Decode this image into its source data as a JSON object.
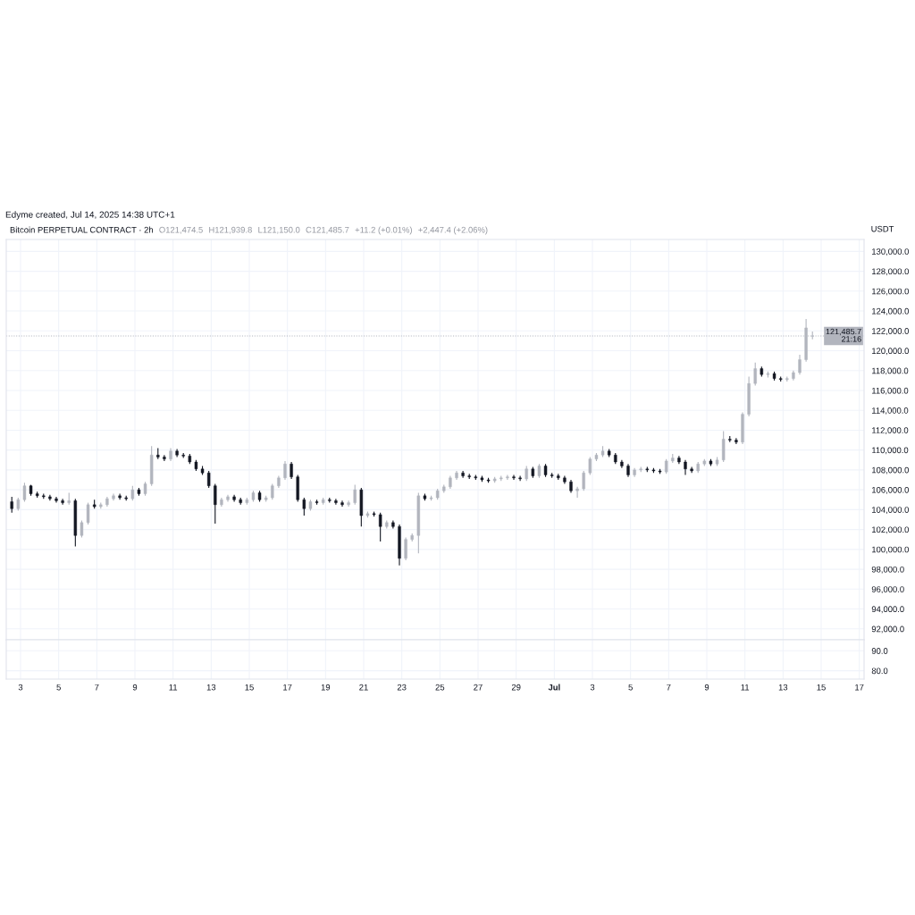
{
  "chart_data": [
    {
      "type": "candlestick",
      "title": "Edyme created, Jul 14, 2025 14:38 UTC+1",
      "subtitle": "Bitcoin PERPETUAL CONTRACT · 2h",
      "annotations": [
        "O121,474.5",
        "H121,939.8",
        "L121,150.0",
        "C121,485.7",
        "+11.2 (+0.01%)",
        "+2,447.4 (+2.06%)"
      ],
      "ylabel": "USDT",
      "x": [
        "2025-06-02T13:00",
        "2025-06-02T21:00",
        "2025-06-03T05:00",
        "2025-06-03T13:00",
        "2025-06-03T21:00",
        "2025-06-04T05:00",
        "2025-06-04T13:00",
        "2025-06-04T21:00",
        "2025-06-05T05:00",
        "2025-06-05T13:00",
        "2025-06-05T21:00",
        "2025-06-06T05:00",
        "2025-06-06T13:00",
        "2025-06-06T21:00",
        "2025-06-07T05:00",
        "2025-06-07T13:00",
        "2025-06-07T21:00",
        "2025-06-08T05:00",
        "2025-06-08T13:00",
        "2025-06-08T21:00",
        "2025-06-09T05:00",
        "2025-06-09T13:00",
        "2025-06-09T21:00",
        "2025-06-10T05:00",
        "2025-06-10T13:00",
        "2025-06-10T21:00",
        "2025-06-11T05:00",
        "2025-06-11T13:00",
        "2025-06-11T21:00",
        "2025-06-12T05:00",
        "2025-06-12T13:00",
        "2025-06-12T21:00",
        "2025-06-13T05:00",
        "2025-06-13T13:00",
        "2025-06-13T21:00",
        "2025-06-14T05:00",
        "2025-06-14T13:00",
        "2025-06-14T21:00",
        "2025-06-15T05:00",
        "2025-06-15T13:00",
        "2025-06-15T21:00",
        "2025-06-16T05:00",
        "2025-06-16T13:00",
        "2025-06-16T21:00",
        "2025-06-17T05:00",
        "2025-06-17T13:00",
        "2025-06-17T21:00",
        "2025-06-18T05:00",
        "2025-06-18T13:00",
        "2025-06-18T21:00",
        "2025-06-19T05:00",
        "2025-06-19T13:00",
        "2025-06-19T21:00",
        "2025-06-20T05:00",
        "2025-06-20T13:00",
        "2025-06-20T21:00",
        "2025-06-21T05:00",
        "2025-06-21T13:00",
        "2025-06-21T21:00",
        "2025-06-22T05:00",
        "2025-06-22T13:00",
        "2025-06-22T21:00",
        "2025-06-23T05:00",
        "2025-06-23T13:00",
        "2025-06-23T21:00",
        "2025-06-24T05:00",
        "2025-06-24T13:00",
        "2025-06-24T21:00",
        "2025-06-25T05:00",
        "2025-06-25T13:00",
        "2025-06-25T21:00",
        "2025-06-26T05:00",
        "2025-06-26T13:00",
        "2025-06-26T21:00",
        "2025-06-27T05:00",
        "2025-06-27T13:00",
        "2025-06-27T21:00",
        "2025-06-28T05:00",
        "2025-06-28T13:00",
        "2025-06-28T21:00",
        "2025-06-29T05:00",
        "2025-06-29T13:00",
        "2025-06-29T21:00",
        "2025-06-30T05:00",
        "2025-06-30T13:00",
        "2025-06-30T21:00",
        "2025-07-01T05:00",
        "2025-07-01T13:00",
        "2025-07-01T21:00",
        "2025-07-02T05:00",
        "2025-07-02T13:00",
        "2025-07-02T21:00",
        "2025-07-03T05:00",
        "2025-07-03T13:00",
        "2025-07-03T21:00",
        "2025-07-04T05:00",
        "2025-07-04T13:00",
        "2025-07-04T21:00",
        "2025-07-05T05:00",
        "2025-07-05T13:00",
        "2025-07-05T21:00",
        "2025-07-06T05:00",
        "2025-07-06T13:00",
        "2025-07-06T21:00",
        "2025-07-07T05:00",
        "2025-07-07T13:00",
        "2025-07-07T21:00",
        "2025-07-08T05:00",
        "2025-07-08T13:00",
        "2025-07-08T21:00",
        "2025-07-09T05:00",
        "2025-07-09T13:00",
        "2025-07-09T21:00",
        "2025-07-10T05:00",
        "2025-07-10T13:00",
        "2025-07-10T21:00",
        "2025-07-11T05:00",
        "2025-07-11T13:00",
        "2025-07-11T21:00",
        "2025-07-12T05:00",
        "2025-07-12T13:00",
        "2025-07-12T21:00",
        "2025-07-13T05:00",
        "2025-07-13T13:00",
        "2025-07-13T21:00",
        "2025-07-14T05:00",
        "2025-07-14T13:00"
      ],
      "ohlc": [
        [
          104800,
          105300,
          103700,
          104100
        ],
        [
          104100,
          105200,
          103900,
          105000
        ],
        [
          105000,
          106700,
          104800,
          106400
        ],
        [
          106400,
          106500,
          105400,
          105600
        ],
        [
          105600,
          105800,
          105200,
          105400
        ],
        [
          105400,
          105600,
          105100,
          105300
        ],
        [
          105300,
          105500,
          104900,
          105100
        ],
        [
          105100,
          105300,
          104700,
          104900
        ],
        [
          104900,
          105100,
          104500,
          104700
        ],
        [
          104700,
          105700,
          104500,
          104900
        ],
        [
          104900,
          105100,
          100300,
          101400
        ],
        [
          101400,
          102900,
          101200,
          102700
        ],
        [
          102700,
          104700,
          102500,
          104500
        ],
        [
          104500,
          105000,
          104100,
          104300
        ],
        [
          104300,
          104700,
          104100,
          104500
        ],
        [
          104500,
          105300,
          104300,
          105100
        ],
        [
          105100,
          105600,
          104900,
          105400
        ],
        [
          105400,
          105600,
          105000,
          105200
        ],
        [
          105200,
          105400,
          104900,
          105100
        ],
        [
          105100,
          106400,
          104900,
          106000
        ],
        [
          106000,
          106200,
          105400,
          105600
        ],
        [
          105600,
          106800,
          105400,
          106600
        ],
        [
          106600,
          110400,
          106400,
          109500
        ],
        [
          109500,
          110200,
          109100,
          109300
        ],
        [
          109300,
          109500,
          108900,
          109100
        ],
        [
          109100,
          110200,
          108900,
          109900
        ],
        [
          109900,
          110100,
          109300,
          109500
        ],
        [
          109500,
          109700,
          109200,
          109400
        ],
        [
          109400,
          109600,
          108600,
          108800
        ],
        [
          108800,
          109000,
          107900,
          108100
        ],
        [
          108100,
          108400,
          107500,
          107700
        ],
        [
          107700,
          107900,
          106200,
          106400
        ],
        [
          106400,
          106600,
          102600,
          104500
        ],
        [
          104500,
          105200,
          104300,
          105000
        ],
        [
          105000,
          105500,
          104800,
          105300
        ],
        [
          105300,
          105500,
          104800,
          105000
        ],
        [
          105000,
          105200,
          104500,
          104700
        ],
        [
          104700,
          105200,
          104500,
          105000
        ],
        [
          105000,
          105900,
          104800,
          105700
        ],
        [
          105700,
          105900,
          104800,
          105000
        ],
        [
          105000,
          105400,
          104800,
          105200
        ],
        [
          105200,
          106600,
          105000,
          106400
        ],
        [
          106400,
          107400,
          106200,
          107200
        ],
        [
          107200,
          108900,
          107000,
          108600
        ],
        [
          108600,
          108800,
          107100,
          107300
        ],
        [
          107300,
          107500,
          104800,
          105000
        ],
        [
          105000,
          105200,
          103400,
          104100
        ],
        [
          104100,
          105000,
          103900,
          104800
        ],
        [
          104800,
          105000,
          104500,
          104700
        ],
        [
          104700,
          105200,
          104500,
          105000
        ],
        [
          105000,
          105200,
          104700,
          104900
        ],
        [
          104900,
          105100,
          104500,
          104700
        ],
        [
          104700,
          104900,
          104300,
          104500
        ],
        [
          104500,
          104900,
          104300,
          104700
        ],
        [
          104700,
          106500,
          104500,
          106000
        ],
        [
          106000,
          106200,
          102300,
          103400
        ],
        [
          103400,
          103800,
          103200,
          103600
        ],
        [
          103600,
          103800,
          103300,
          103500
        ],
        [
          103500,
          103700,
          100800,
          102300
        ],
        [
          102300,
          102900,
          102100,
          102700
        ],
        [
          102700,
          102900,
          102100,
          102300
        ],
        [
          102300,
          102500,
          98400,
          99100
        ],
        [
          99100,
          101200,
          98900,
          101000
        ],
        [
          101000,
          101600,
          100800,
          101400
        ],
        [
          101400,
          105700,
          99600,
          105400
        ],
        [
          105400,
          105600,
          104900,
          105100
        ],
        [
          105100,
          105400,
          104900,
          105200
        ],
        [
          105200,
          106100,
          105000,
          105900
        ],
        [
          105900,
          106500,
          105700,
          106300
        ],
        [
          106300,
          107400,
          106100,
          107200
        ],
        [
          107200,
          107900,
          107000,
          107700
        ],
        [
          107700,
          107900,
          107200,
          107400
        ],
        [
          107400,
          107600,
          107100,
          107300
        ],
        [
          107300,
          107500,
          107000,
          107200
        ],
        [
          107200,
          107400,
          106800,
          107000
        ],
        [
          107000,
          107200,
          106700,
          106900
        ],
        [
          106900,
          107300,
          106700,
          107100
        ],
        [
          107100,
          107400,
          106900,
          107200
        ],
        [
          107200,
          107500,
          107000,
          107300
        ],
        [
          107300,
          107500,
          107000,
          107200
        ],
        [
          107200,
          107400,
          106900,
          107100
        ],
        [
          107100,
          108400,
          106900,
          108100
        ],
        [
          108100,
          108300,
          107200,
          107400
        ],
        [
          107400,
          108600,
          107200,
          108400
        ],
        [
          108400,
          108600,
          107300,
          107500
        ],
        [
          107500,
          107700,
          107200,
          107400
        ],
        [
          107400,
          107600,
          107000,
          107200
        ],
        [
          107200,
          107400,
          106600,
          106800
        ],
        [
          106800,
          107000,
          105700,
          105900
        ],
        [
          105900,
          106300,
          105200,
          106100
        ],
        [
          106100,
          107900,
          105900,
          107700
        ],
        [
          107700,
          109300,
          107500,
          109100
        ],
        [
          109100,
          109700,
          108900,
          109500
        ],
        [
          109500,
          110400,
          109300,
          109900
        ],
        [
          109900,
          110100,
          109300,
          109500
        ],
        [
          109500,
          109700,
          108600,
          108800
        ],
        [
          108800,
          109000,
          108200,
          108400
        ],
        [
          108400,
          108600,
          107300,
          107500
        ],
        [
          107500,
          108200,
          107300,
          108000
        ],
        [
          108000,
          108300,
          107800,
          108100
        ],
        [
          108100,
          108300,
          107800,
          108000
        ],
        [
          108000,
          108200,
          107700,
          107900
        ],
        [
          107900,
          108100,
          107600,
          107800
        ],
        [
          107800,
          109100,
          107600,
          108900
        ],
        [
          108900,
          109600,
          108700,
          109200
        ],
        [
          109200,
          109400,
          108600,
          108800
        ],
        [
          108800,
          109000,
          107500,
          108100
        ],
        [
          108100,
          108300,
          107700,
          107900
        ],
        [
          107900,
          108800,
          107700,
          108600
        ],
        [
          108600,
          109100,
          108400,
          108900
        ],
        [
          108900,
          109100,
          108400,
          108600
        ],
        [
          108600,
          109300,
          108400,
          109000
        ],
        [
          109000,
          111900,
          108800,
          111100
        ],
        [
          111100,
          111400,
          110800,
          111000
        ],
        [
          111000,
          111200,
          110600,
          110800
        ],
        [
          110800,
          113800,
          110600,
          113600
        ],
        [
          113600,
          117400,
          113400,
          116700
        ],
        [
          116700,
          118800,
          116500,
          118200
        ],
        [
          118200,
          118400,
          117400,
          117600
        ],
        [
          117600,
          117900,
          117300,
          117700
        ],
        [
          117700,
          117900,
          117000,
          117200
        ],
        [
          117200,
          117400,
          116900,
          117100
        ],
        [
          117100,
          117400,
          116900,
          117200
        ],
        [
          117200,
          118000,
          117000,
          117800
        ],
        [
          117800,
          119600,
          117600,
          119100
        ],
        [
          119100,
          123200,
          118900,
          122300
        ],
        [
          121474.5,
          121939.8,
          121150.0,
          121485.7
        ]
      ],
      "colors": [
        "#131722",
        "#b2b5be",
        "#b2b5be",
        "#131722",
        "#131722",
        "#131722",
        "#131722",
        "#131722",
        "#131722",
        "#b2b5be",
        "#131722",
        "#b2b5be",
        "#b2b5be",
        "#131722",
        "#b2b5be",
        "#b2b5be",
        "#b2b5be",
        "#131722",
        "#131722",
        "#b2b5be",
        "#131722",
        "#b2b5be",
        "#b2b5be",
        "#131722",
        "#131722",
        "#b2b5be",
        "#131722",
        "#131722",
        "#131722",
        "#131722",
        "#131722",
        "#131722",
        "#131722",
        "#b2b5be",
        "#b2b5be",
        "#131722",
        "#131722",
        "#b2b5be",
        "#b2b5be",
        "#131722",
        "#b2b5be",
        "#b2b5be",
        "#b2b5be",
        "#b2b5be",
        "#131722",
        "#131722",
        "#131722",
        "#b2b5be",
        "#131722",
        "#b2b5be",
        "#131722",
        "#131722",
        "#131722",
        "#b2b5be",
        "#b2b5be",
        "#131722",
        "#b2b5be",
        "#131722",
        "#131722",
        "#b2b5be",
        "#131722",
        "#131722",
        "#b2b5be",
        "#b2b5be",
        "#b2b5be",
        "#131722",
        "#b2b5be",
        "#b2b5be",
        "#b2b5be",
        "#b2b5be",
        "#b2b5be",
        "#131722",
        "#131722",
        "#131722",
        "#131722",
        "#131722",
        "#b2b5be",
        "#b2b5be",
        "#b2b5be",
        "#131722",
        "#131722",
        "#b2b5be",
        "#131722",
        "#b2b5be",
        "#131722",
        "#131722",
        "#131722",
        "#131722",
        "#131722",
        "#b2b5be",
        "#b2b5be",
        "#b2b5be",
        "#b2b5be",
        "#b2b5be",
        "#131722",
        "#131722",
        "#131722",
        "#131722",
        "#b2b5be",
        "#b2b5be",
        "#131722",
        "#131722",
        "#131722",
        "#b2b5be",
        "#b2b5be",
        "#131722",
        "#131722",
        "#131722",
        "#b2b5be",
        "#b2b5be",
        "#131722",
        "#b2b5be",
        "#b2b5be",
        "#131722",
        "#131722",
        "#b2b5be",
        "#b2b5be",
        "#b2b5be",
        "#131722",
        "#b2b5be",
        "#131722",
        "#131722",
        "#b2b5be",
        "#b2b5be",
        "#b2b5be",
        "#b2b5be",
        "#b2b5be"
      ],
      "xlim": [
        "2025-06-02T06:00",
        "2025-07-17T06:00"
      ],
      "xticks": [
        {
          "value": "2025-06-03",
          "label": null
        },
        {
          "value": "2025-06-05",
          "label": null
        },
        {
          "value": "2025-06-07",
          "label": null
        },
        {
          "value": "2025-06-09",
          "label": null
        },
        {
          "value": "2025-06-11",
          "label": null
        },
        {
          "value": "2025-06-13",
          "label": null
        },
        {
          "value": "2025-06-15",
          "label": null
        },
        {
          "value": "2025-06-17",
          "label": null
        },
        {
          "value": "2025-06-19",
          "label": null
        },
        {
          "value": "2025-06-21",
          "label": null
        },
        {
          "value": "2025-06-23",
          "label": null
        },
        {
          "value": "2025-06-25",
          "label": null
        },
        {
          "value": "2025-06-27",
          "label": null
        },
        {
          "value": "2025-06-29",
          "label": null
        },
        {
          "value": "2025-07-01",
          "label": null
        },
        {
          "value": "2025-07-03",
          "label": null
        },
        {
          "value": "2025-07-05",
          "label": null
        },
        {
          "value": "2025-07-07",
          "label": null
        },
        {
          "value": "2025-07-09",
          "label": null
        },
        {
          "value": "2025-07-11",
          "label": null
        },
        {
          "value": "2025-07-13",
          "label": null
        },
        {
          "value": "2025-07-15",
          "label": null
        },
        {
          "value": "2025-07-17",
          "label": null
        }
      ],
      "ylim": [
        90900,
        131200
      ],
      "yticks": [
        {
          "value": 92000,
          "label": "92,000.0"
        },
        {
          "value": 94000,
          "label": "94,000.0"
        },
        {
          "value": 96000,
          "label": "96,000.0"
        },
        {
          "value": 98000,
          "label": "98,000.0"
        },
        {
          "value": 100000,
          "label": "100,000.0"
        },
        {
          "value": 102000,
          "label": "102,000.0"
        },
        {
          "value": 104000,
          "label": "104,000.0"
        },
        {
          "value": 106000,
          "label": "106,000.0"
        },
        {
          "value": 108000,
          "label": "108,000.0"
        },
        {
          "value": 110000,
          "label": "110,000.0"
        },
        {
          "value": 112000,
          "label": "112,000.0"
        },
        {
          "value": 114000,
          "label": "114,000.0"
        },
        {
          "value": 116000,
          "label": "116,000.0"
        },
        {
          "value": 118000,
          "label": "118,000.0"
        },
        {
          "value": 120000,
          "label": "120,000.0"
        },
        {
          "value": 122000,
          "label": "122,000.0"
        },
        {
          "value": 124000,
          "label": "124,000.0"
        },
        {
          "value": 126000,
          "label": "126,000.0"
        },
        {
          "value": 128000,
          "label": "128,000.0"
        },
        {
          "value": 130000,
          "label": "130,000.0"
        }
      ],
      "ref_lines": [
        {
          "axis": "y",
          "value": 121485.7,
          "label": "121,485.7\n21:16",
          "color": "#b2b5be",
          "line_style": "dotted"
        }
      ],
      "tick_labels": "y",
      "grid": true
    },
    {
      "type": "line",
      "xlim": [
        "2025-06-02T06:00",
        "2025-07-17T06:00"
      ],
      "xticks": [
        {
          "value": "2025-06-03",
          "label": "3"
        },
        {
          "value": "2025-06-05",
          "label": "5"
        },
        {
          "value": "2025-06-07",
          "label": "7"
        },
        {
          "value": "2025-06-09",
          "label": "9"
        },
        {
          "value": "2025-06-11",
          "label": "11"
        },
        {
          "value": "2025-06-13",
          "label": "13"
        },
        {
          "value": "2025-06-15",
          "label": "15"
        },
        {
          "value": "2025-06-17",
          "label": "17"
        },
        {
          "value": "2025-06-19",
          "label": "19"
        },
        {
          "value": "2025-06-21",
          "label": "21"
        },
        {
          "value": "2025-06-23",
          "label": "23"
        },
        {
          "value": "2025-06-25",
          "label": "25"
        },
        {
          "value": "2025-06-27",
          "label": "27"
        },
        {
          "value": "2025-06-29",
          "label": "29"
        },
        {
          "value": "2025-07-01",
          "label": "Jul"
        },
        {
          "value": "2025-07-03",
          "label": "3"
        },
        {
          "value": "2025-07-05",
          "label": "5"
        },
        {
          "value": "2025-07-07",
          "label": "7"
        },
        {
          "value": "2025-07-09",
          "label": "9"
        },
        {
          "value": "2025-07-11",
          "label": "11"
        },
        {
          "value": "2025-07-13",
          "label": "13"
        },
        {
          "value": "2025-07-15",
          "label": "15"
        },
        {
          "value": "2025-07-17",
          "label": "17"
        }
      ],
      "ylim": [
        75.8,
        95.5
      ],
      "yticks": [
        {
          "value": 80,
          "label": "80.0"
        },
        {
          "value": 90,
          "label": "90.0"
        }
      ],
      "grid": true
    }
  ]
}
